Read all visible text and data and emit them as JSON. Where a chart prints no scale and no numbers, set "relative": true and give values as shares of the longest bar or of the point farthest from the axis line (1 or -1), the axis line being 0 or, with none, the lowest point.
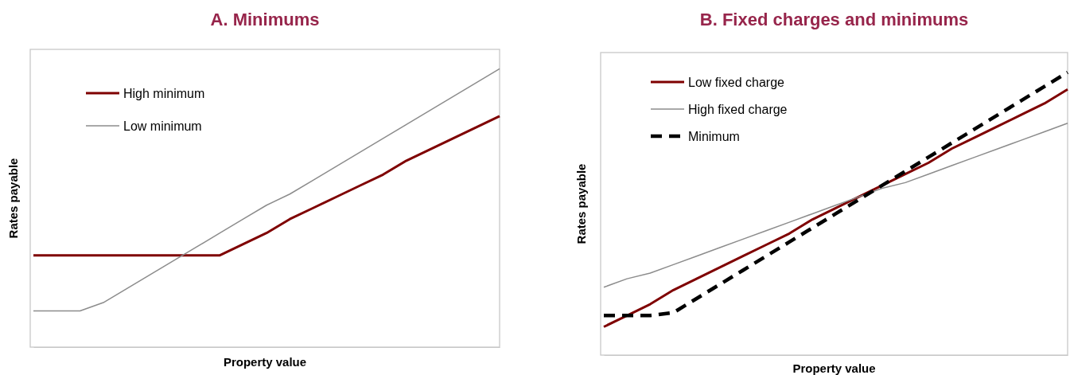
{
  "chart_data": [
    {
      "type": "line",
      "title": "A. Minimums",
      "xlabel": "Property value",
      "ylabel": "Rates payable",
      "relative": true,
      "legend": "top left",
      "categories": [
        null,
        null,
        null,
        null,
        null,
        null,
        null,
        null,
        null,
        null,
        null,
        null,
        null,
        null,
        null,
        null,
        null,
        null,
        null,
        null,
        null
      ],
      "series": [
        {
          "name": "High minimum",
          "color": "#7f0000",
          "line_style": "solid",
          "values": [
            0.33,
            0.33,
            0.33,
            0.33,
            0.33,
            0.33,
            0.33,
            0.33,
            0.33,
            0.37,
            0.41,
            0.46,
            0.5,
            0.54,
            0.58,
            0.62,
            0.67,
            0.71,
            0.75,
            0.79,
            0.83
          ]
        },
        {
          "name": "Low minimum",
          "color": "#8c8c8c",
          "line_style": "solid",
          "values": [
            0.13,
            0.13,
            0.13,
            0.16,
            0.21,
            0.26,
            0.31,
            0.36,
            0.41,
            0.46,
            0.51,
            0.55,
            0.6,
            0.65,
            0.7,
            0.75,
            0.8,
            0.85,
            0.9,
            0.95,
            1.0
          ]
        }
      ]
    },
    {
      "type": "line",
      "title": "B. Fixed charges and minimums",
      "xlabel": "Property value",
      "ylabel": "Rates payable",
      "relative": true,
      "legend": "top left",
      "categories": [
        null,
        null,
        null,
        null,
        null,
        null,
        null,
        null,
        null,
        null,
        null,
        null,
        null,
        null,
        null,
        null,
        null,
        null,
        null,
        null,
        null
      ],
      "series": [
        {
          "name": "Low fixed charge",
          "color": "#7f0000",
          "line_style": "solid",
          "values": [
            0.1,
            0.14,
            0.18,
            0.23,
            0.27,
            0.31,
            0.35,
            0.39,
            0.43,
            0.48,
            0.52,
            0.56,
            0.6,
            0.64,
            0.68,
            0.73,
            0.77,
            0.81,
            0.85,
            0.89,
            0.94
          ]
        },
        {
          "name": "High fixed charge",
          "color": "#8c8c8c",
          "line_style": "solid",
          "values": [
            0.24,
            0.27,
            0.29,
            0.32,
            0.35,
            0.38,
            0.41,
            0.44,
            0.47,
            0.5,
            0.53,
            0.56,
            0.59,
            0.61,
            0.64,
            0.67,
            0.7,
            0.73,
            0.76,
            0.79,
            0.82
          ]
        },
        {
          "name": "Minimum",
          "color": "#000000",
          "line_style": "dashed",
          "values": [
            0.14,
            0.14,
            0.14,
            0.15,
            0.2,
            0.25,
            0.3,
            0.35,
            0.4,
            0.45,
            0.5,
            0.55,
            0.6,
            0.65,
            0.7,
            0.75,
            0.8,
            0.85,
            0.9,
            0.95,
            1.0
          ]
        }
      ]
    }
  ]
}
